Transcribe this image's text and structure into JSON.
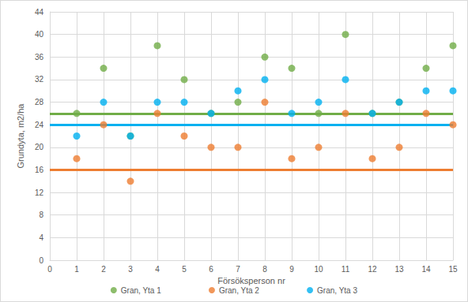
{
  "chart_data": {
    "type": "scatter",
    "x_label": "Försöksperson nr",
    "y_label": "Grundyta, m2/ha",
    "xlim": [
      0,
      15
    ],
    "xticks": [
      0,
      1,
      2,
      3,
      4,
      5,
      6,
      7,
      8,
      9,
      10,
      11,
      12,
      13,
      14,
      15
    ],
    "ylim": [
      0,
      44
    ],
    "yticks": [
      0,
      4,
      8,
      12,
      16,
      20,
      24,
      28,
      32,
      36,
      40,
      44
    ],
    "grid": true,
    "legend": "bottom",
    "marker": "circle",
    "x": [
      1,
      2,
      3,
      4,
      5,
      6,
      7,
      8,
      9,
      10,
      11,
      12,
      13,
      14,
      15
    ],
    "series": [
      {
        "name": "Gran, Yta 1",
        "color": "#70ad47",
        "reference": 26,
        "values": [
          26,
          34,
          22,
          38,
          32,
          26,
          28,
          36,
          34,
          26,
          40,
          26,
          28,
          34,
          38
        ]
      },
      {
        "name": "Gran, Yta 2",
        "color": "#ed7d31",
        "reference": 16,
        "values": [
          18,
          24,
          14,
          26,
          22,
          20,
          20,
          28,
          18,
          20,
          26,
          18,
          20,
          26,
          24
        ]
      },
      {
        "name": "Gran, Yta 3",
        "color": "#00b0f0",
        "reference": 24,
        "values": [
          22,
          28,
          22,
          28,
          28,
          26,
          30,
          32,
          26,
          28,
          32,
          26,
          28,
          30,
          30
        ]
      }
    ]
  }
}
